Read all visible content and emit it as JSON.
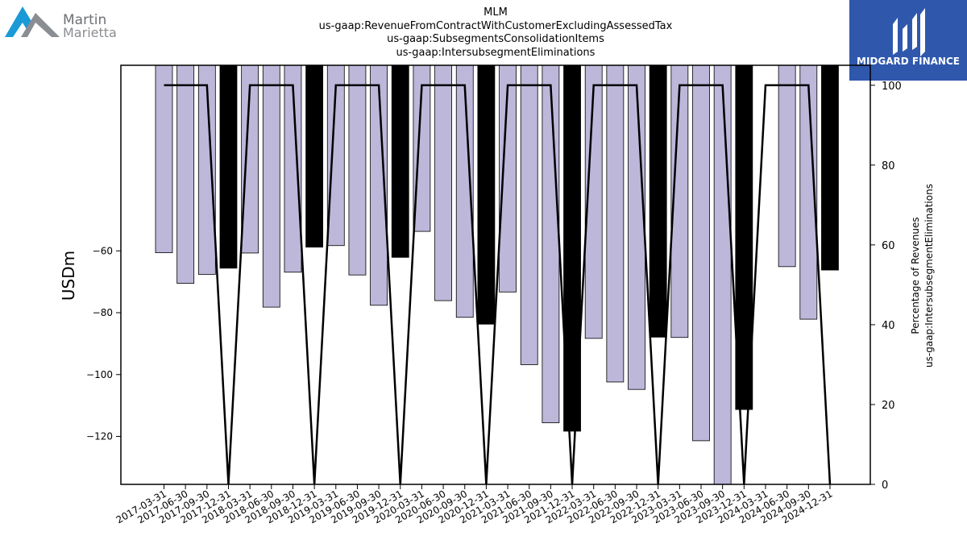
{
  "branding": {
    "left_logo_line1": "Martin",
    "left_logo_line2": "Marietta",
    "right_logo_text": "MIDGARD FINANCE"
  },
  "chart_data": {
    "type": "bar",
    "title_lines": [
      "MLM",
      "us-gaap:RevenueFromContractWithCustomerExcludingAssessedTax",
      "us-gaap:SubsegmentsConsolidationItems",
      "us-gaap:IntersubsegmentEliminations"
    ],
    "ylabel": "USDm",
    "y2label_lines": [
      "Percentage of Revenues",
      "us-gaap:IntersubsegmentEliminations"
    ],
    "ylim": [
      -135.5,
      0
    ],
    "y2lim": [
      0,
      105
    ],
    "yticks": [
      -60,
      -80,
      -100,
      -120
    ],
    "y2ticks": [
      0,
      20,
      40,
      60,
      80,
      100
    ],
    "categories": [
      "2017-03-31",
      "2017-06-30",
      "2017-09-30",
      "2017-12-31",
      "2018-03-31",
      "2018-06-30",
      "2018-09-30",
      "2018-12-31",
      "2019-03-31",
      "2019-06-30",
      "2019-09-30",
      "2019-12-31",
      "2020-03-31",
      "2020-06-30",
      "2020-09-30",
      "2020-12-31",
      "2021-03-31",
      "2021-06-30",
      "2021-09-30",
      "2021-12-31",
      "2022-03-31",
      "2022-06-30",
      "2022-09-30",
      "2022-12-31",
      "2023-03-31",
      "2023-06-30",
      "2023-09-30",
      "2023-12-31",
      "2024-03-31",
      "2024-06-30",
      "2024-09-30",
      "2024-12-31"
    ],
    "values": [
      -60.6,
      -70.5,
      -67.6,
      -65.6,
      -60.7,
      -78.2,
      -66.9,
      -58.8,
      -58.3,
      -67.8,
      -77.6,
      -62.1,
      -53.7,
      -76.1,
      -81.5,
      -83.7,
      -73.3,
      -96.8,
      -115.6,
      -118.3,
      -88.3,
      -102.4,
      -104.8,
      -87.9,
      -88.0,
      -121.4,
      -135.5,
      -111.3,
      null,
      -65.1,
      -82.1,
      -66.2
    ],
    "highlight": [
      false,
      false,
      false,
      true,
      false,
      false,
      false,
      true,
      false,
      false,
      false,
      true,
      false,
      false,
      false,
      true,
      false,
      false,
      false,
      true,
      false,
      false,
      false,
      true,
      false,
      false,
      false,
      true,
      false,
      false,
      false,
      true
    ],
    "line_values": [
      100,
      100,
      100,
      0,
      100,
      100,
      100,
      0,
      100,
      100,
      100,
      0,
      100,
      100,
      100,
      0,
      100,
      100,
      100,
      0,
      100,
      100,
      100,
      0,
      100,
      100,
      100,
      0,
      100,
      100,
      100,
      0
    ],
    "colors": {
      "bar": "#bdb7da",
      "highlight": "#000000",
      "line": "#000000",
      "logo_blue": "#2f58ad",
      "logo_cyan": "#1a9ad6",
      "logo_grey": "#8a8d91"
    }
  }
}
